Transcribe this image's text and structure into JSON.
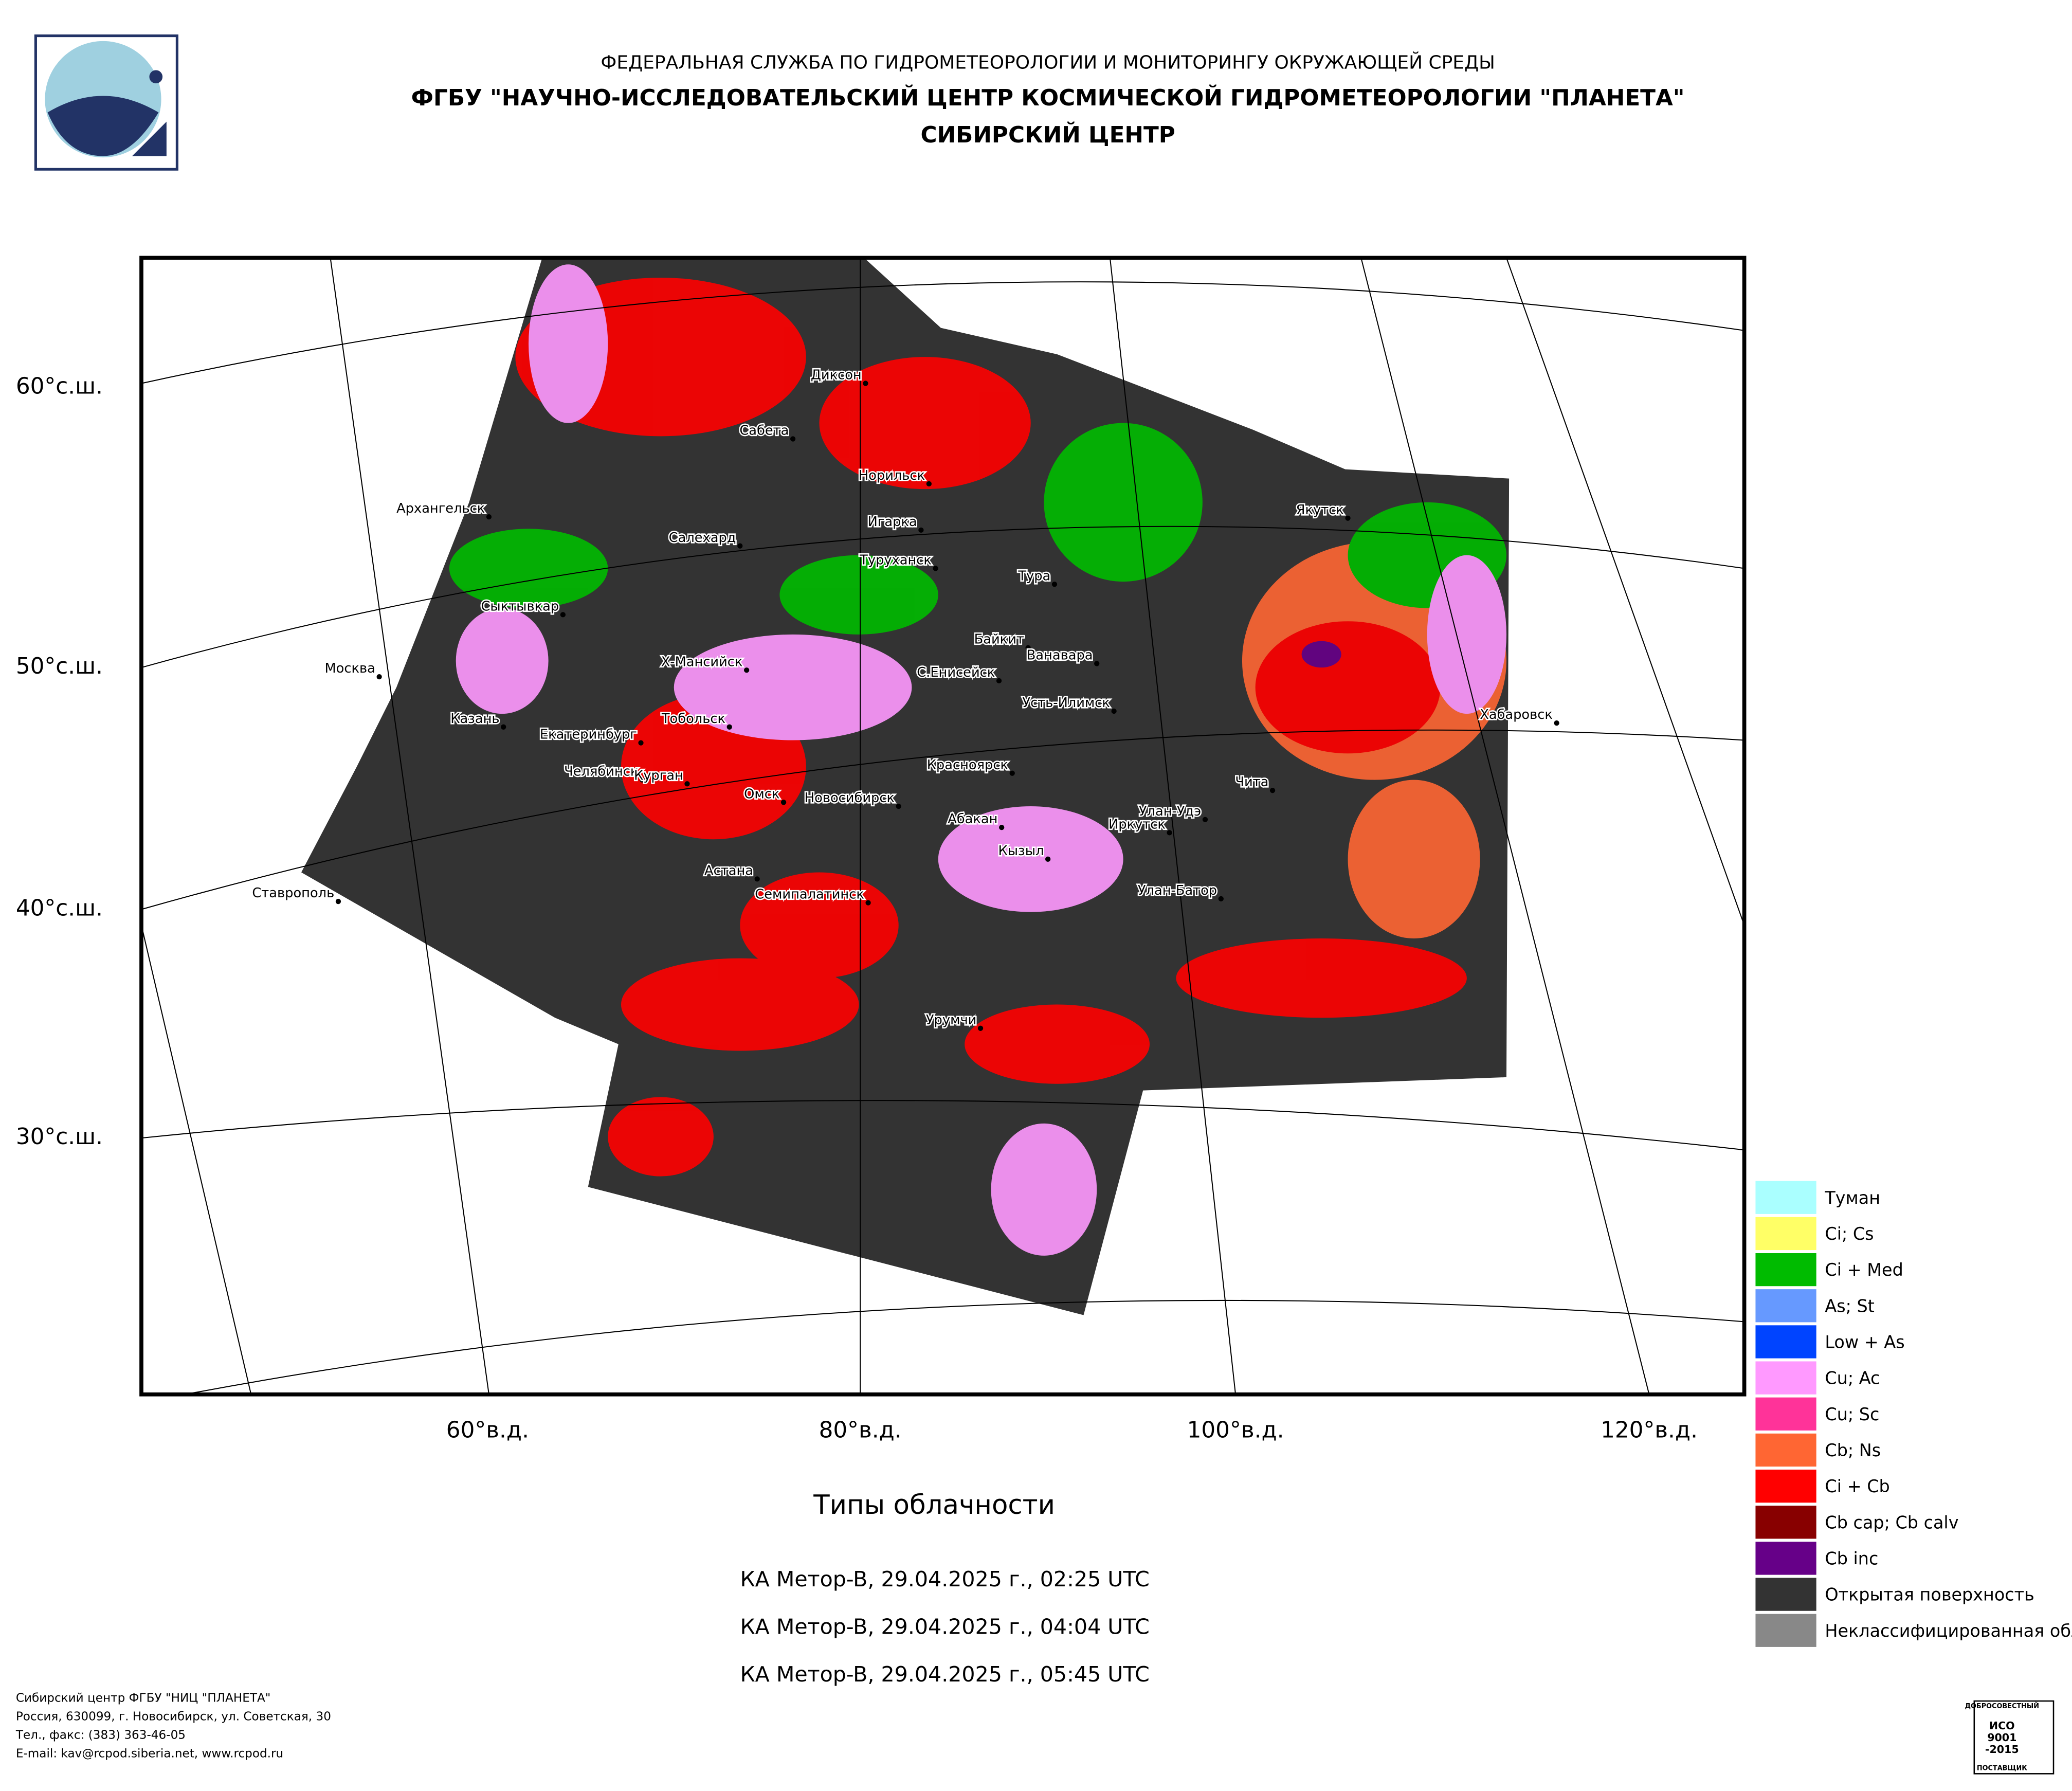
{
  "header": {
    "lines": [
      "ФЕДЕРАЛЬНАЯ СЛУЖБА ПО ГИДРОМЕТЕОРОЛОГИИ И МОНИТОРИНГУ ОКРУЖАЮЩЕЙ СРЕДЫ",
      "ФГБУ \"НАУЧНО-ИССЛЕДОВАТЕЛЬСКИЙ ЦЕНТР КОСМИЧЕСКОЙ ГИДРОМЕТЕОРОЛОГИИ \"ПЛАНЕТА\"",
      "СИБИРСКИЙ ЦЕНТР"
    ]
  },
  "map": {
    "lat_labels": [
      "60°с.ш.",
      "50°с.ш.",
      "40°с.ш.",
      "30°с.ш."
    ],
    "lon_labels": [
      "60°в.д.",
      "80°в.д.",
      "100°в.д.",
      "120°в.д."
    ],
    "cities": [
      "Диксон",
      "Сабета",
      "Норильск",
      "Архангельск",
      "Игарка",
      "Салехард",
      "Туруханск",
      "Тура",
      "Якутск",
      "Сыктывкар",
      "Байкит",
      "Ванавара",
      "Москва",
      "Х-Мансийск",
      "С.Енисейск",
      "Усть-Илимск",
      "Хабаровск",
      "Казань",
      "Тобольск",
      "Екатеринбург",
      "Челябинск",
      "Чита",
      "Курган",
      "Омск",
      "Красноярск",
      "Новосибирск",
      "Абакан",
      "Улан-Удэ",
      "Иркутск",
      "Кызыл",
      "Астана",
      "Ставрополь",
      "Семипалатинск",
      "Улан-Батор",
      "Урумчи"
    ]
  },
  "legend": [
    {
      "label": "Туман",
      "color": "#aaffff"
    },
    {
      "label": "Ci; Cs",
      "color": "#ffff66"
    },
    {
      "label": "Ci + Med",
      "color": "#00bb00"
    },
    {
      "label": "As; St",
      "color": "#6699ff"
    },
    {
      "label": "Low + As",
      "color": "#0044ff"
    },
    {
      "label": "Cu; Ac",
      "color": "#ff99ff"
    },
    {
      "label": "Cu; Sc",
      "color": "#ff3399"
    },
    {
      "label": "Cb; Ns",
      "color": "#ff6633"
    },
    {
      "label": "Ci + Cb",
      "color": "#ff0000"
    },
    {
      "label": "Cb cap; Cb calv",
      "color": "#880000"
    },
    {
      "label": "Cb inc",
      "color": "#660088"
    },
    {
      "label": "Открытая поверхность",
      "color": "#333333"
    },
    {
      "label": "Неклассифицированная облачность",
      "color": "#888888"
    }
  ],
  "title": "Типы облачности",
  "passes": [
    "КА Meтop-B, 29.04.2025 г., 02:25 UTC",
    "КА Meтop-B, 29.04.2025 г., 04:04 UTC",
    "КА Meтop-B, 29.04.2025 г., 05:45 UTC"
  ],
  "footer": [
    "Сибирский центр ФГБУ \"НИЦ \"ПЛАНЕТА\"",
    "Россия, 630099, г. Новосибирск, ул. Советская, 30",
    "Тел., факс: (383) 363-46-05",
    "E-mail: kav@rcpod.siberia.net, www.rcpod.ru"
  ],
  "badge": [
    "ДОБРОСОВЕСТНЫЙ",
    "ИСО",
    "9001",
    "-2015",
    "ПОСТАВЩИК"
  ]
}
